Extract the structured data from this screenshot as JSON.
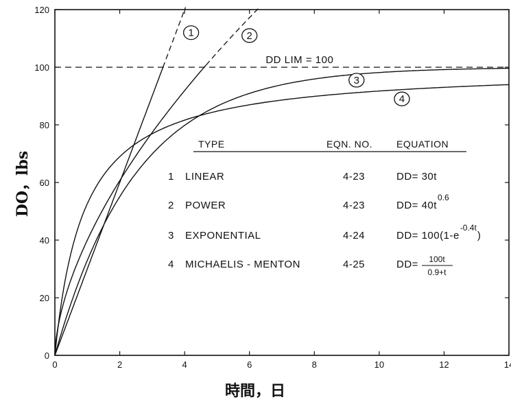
{
  "chart_data": {
    "type": "line",
    "xlabel": "時間，日",
    "ylabel": "DO，lbs",
    "xlim": [
      0,
      14
    ],
    "ylim": [
      0,
      120
    ],
    "xticks": [
      "0",
      "2",
      "4",
      "6",
      "8",
      "10",
      "12",
      "14"
    ],
    "yticks": [
      "0",
      "20",
      "40",
      "60",
      "80",
      "100",
      "120"
    ],
    "grid": false,
    "limit_line": {
      "y": 100,
      "label": "DD LIM = 100"
    },
    "series": [
      {
        "name": "1",
        "type": "LINEAR",
        "equation": "DD= 30t",
        "x": [
          0,
          1,
          2,
          3,
          3.33,
          4,
          4.1
        ],
        "values": [
          0,
          30,
          60,
          90,
          100,
          120,
          123
        ],
        "solid_until_x": 3.33
      },
      {
        "name": "2",
        "type": "POWER",
        "equation": "DD= 40t^0.6",
        "x": [
          0,
          0.5,
          1,
          2,
          3,
          4,
          4.66,
          5,
          6,
          6.5
        ],
        "values": [
          0,
          26.4,
          40,
          60.6,
          77.3,
          91.9,
          100,
          104.6,
          116.1,
          122
        ],
        "solid_until_x": 4.66
      },
      {
        "name": "3",
        "type": "EXPONENTIAL",
        "equation": "DD= 100(1-e^-0.4t)",
        "x": [
          0,
          1,
          2,
          3,
          4,
          5,
          6,
          8,
          10,
          12,
          14
        ],
        "values": [
          0,
          33.0,
          55.1,
          69.9,
          79.8,
          86.5,
          90.9,
          95.9,
          98.2,
          99.2,
          99.6
        ]
      },
      {
        "name": "4",
        "type": "MICHAELIS - MENTON",
        "equation": "DD= 100t/(0.9+t)",
        "x": [
          0,
          0.5,
          1,
          2,
          3,
          4,
          6,
          8,
          10,
          12,
          14
        ],
        "values": [
          0,
          35.7,
          52.6,
          69.0,
          76.9,
          81.6,
          87.0,
          89.9,
          91.7,
          93.0,
          94.0
        ]
      }
    ],
    "legend_table": {
      "headers": {
        "type": "TYPE",
        "eqn_no": "EQN. NO.",
        "equation": "EQUATION"
      },
      "rows": [
        {
          "no": "1",
          "type": "LINEAR",
          "eqn_no": "4-23",
          "equation": "DD= 30t",
          "sup": ""
        },
        {
          "no": "2",
          "type": "POWER",
          "eqn_no": "4-23",
          "equation": "DD= 40t",
          "sup": "0.6"
        },
        {
          "no": "3",
          "type": "EXPONENTIAL",
          "eqn_no": "4-24",
          "equation": "DD= 100(1-e",
          "sup": "-0.4t",
          "tail": ")"
        },
        {
          "no": "4",
          "type": "MICHAELIS - MENTON",
          "eqn_no": "4-25",
          "equation": "DD=",
          "num": "100t",
          "den": "0.9+t"
        }
      ]
    },
    "curve_labels": [
      "1",
      "2",
      "3",
      "4"
    ]
  }
}
